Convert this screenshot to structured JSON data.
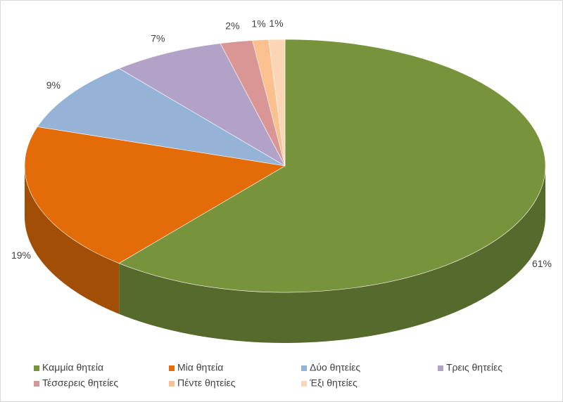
{
  "chart_data": {
    "type": "pie3d",
    "categories": [
      "Καμμία θητεία",
      "Μία θητεία",
      "Δύο θητείες",
      "Τρεις θητείες",
      "Τέσσερεις θητείες",
      "Πέντε θητείες",
      "Έξι θητείες"
    ],
    "values": [
      61,
      19,
      9,
      7,
      2,
      1,
      1
    ],
    "value_labels": [
      "61%",
      "19%",
      "9%",
      "7%",
      "2%",
      "1%",
      "1%"
    ],
    "colors": [
      "#77933c",
      "#e36c09",
      "#95b3d7",
      "#b3a2c7",
      "#d99694",
      "#fac090",
      "#fcd5b5"
    ],
    "legend": "bottom"
  }
}
